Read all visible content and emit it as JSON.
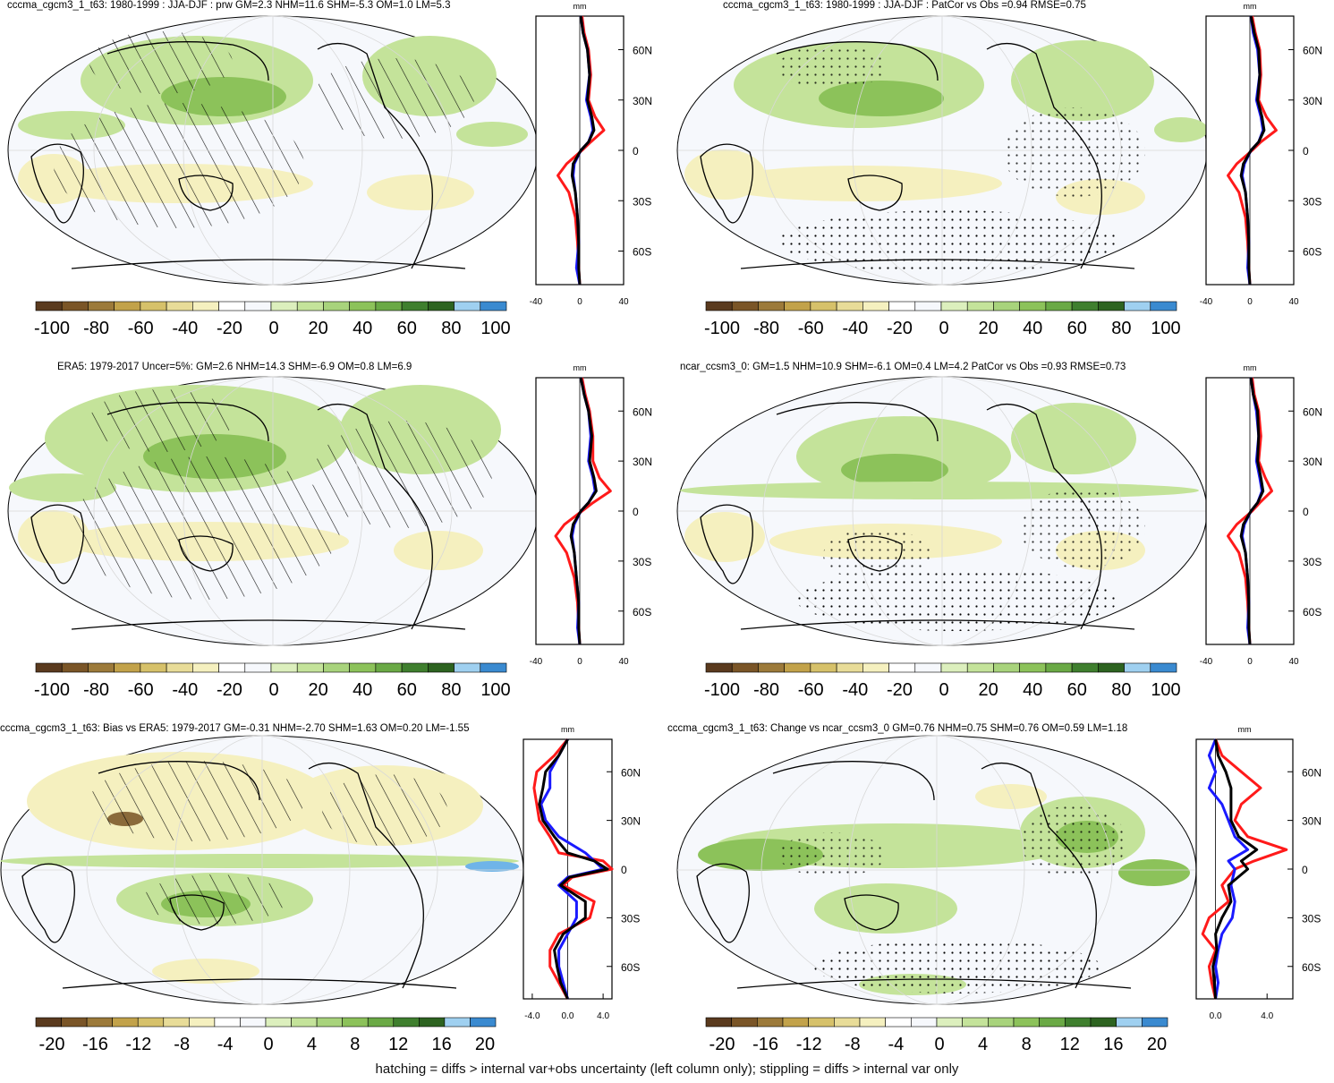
{
  "footer_note": "hatching = diffs > internal var+obs uncertainty (left column only); stippling = diffs > internal var only",
  "colors": {
    "brown": "#5a3a1e",
    "tan": "#d6c16a",
    "pale_yellow": "#f5f0bf",
    "white_band": "#f6f8fc",
    "light_green": "#c4e39a",
    "mid_green": "#8cc25a",
    "dark_green": "#3f7f2e",
    "blue": "#6fb4e8",
    "line_red": "#ff1a1a",
    "line_blue": "#1a1aff",
    "line_black": "#000000"
  },
  "chart_data": [
    {
      "type": "heatmap",
      "title": "cccma_cgcm3_1_t63: 1980-1999 : JJA-DJF : prw GM=2.3 NHM=11.6 SHM=-5.3 OM=1.0 LM=5.3",
      "colorbar": {
        "tick_labels": [
          "-100",
          "-80",
          "-60",
          "-40",
          "-20",
          "0",
          "20",
          "40",
          "60",
          "80",
          "100"
        ]
      },
      "profile": {
        "type": "line",
        "xlabel": "mm",
        "xlim": [
          -40,
          40
        ],
        "x_ticks": [
          "-40",
          "0",
          "40"
        ],
        "y_ticks": [
          "60N",
          "30N",
          "0",
          "30S",
          "60S"
        ],
        "series": [
          {
            "color": "red",
            "lat": [
              80,
              70,
              60,
              45,
              30,
              20,
              12,
              5,
              0,
              -8,
              -15,
              -25,
              -40,
              -55,
              -70,
              -80
            ],
            "values": [
              2,
              4,
              8,
              10,
              8,
              14,
              22,
              10,
              2,
              -12,
              -20,
              -10,
              -4,
              -2,
              -1,
              0
            ]
          },
          {
            "color": "blue",
            "lat": [
              80,
              70,
              60,
              45,
              30,
              20,
              12,
              5,
              0,
              -8,
              -15,
              -25,
              -40,
              -55,
              -70,
              -80
            ],
            "values": [
              1,
              3,
              7,
              9,
              6,
              10,
              12,
              8,
              1,
              -5,
              -6,
              -4,
              -2,
              -1,
              -3,
              0
            ]
          },
          {
            "color": "black",
            "lat": [
              80,
              70,
              60,
              45,
              30,
              20,
              12,
              5,
              0,
              -8,
              -15,
              -25,
              -40,
              -55,
              -70,
              -80
            ],
            "values": [
              1,
              3,
              7,
              9,
              7,
              11,
              13,
              8,
              1,
              -6,
              -7,
              -4,
              -2,
              -1,
              -1,
              0
            ]
          }
        ]
      }
    },
    {
      "type": "heatmap",
      "title": "cccma_cgcm3_1_t63: 1980-1999 : JJA-DJF : PatCor vs Obs =0.94 RMSE=0.75",
      "colorbar": {
        "tick_labels": [
          "-100",
          "-80",
          "-60",
          "-40",
          "-20",
          "0",
          "20",
          "40",
          "60",
          "80",
          "100"
        ]
      },
      "profile": {
        "type": "line",
        "xlabel": "mm",
        "xlim": [
          -40,
          40
        ],
        "x_ticks": [
          "-40",
          "0",
          "40"
        ],
        "y_ticks": [
          "60N",
          "30N",
          "0",
          "30S",
          "60S"
        ],
        "series": [
          {
            "color": "red",
            "lat": [
              80,
              70,
              60,
              45,
              30,
              20,
              12,
              5,
              0,
              -8,
              -15,
              -25,
              -40,
              -55,
              -70,
              -80
            ],
            "values": [
              2,
              5,
              9,
              10,
              8,
              15,
              24,
              10,
              2,
              -12,
              -20,
              -10,
              -4,
              -2,
              -1,
              0
            ]
          },
          {
            "color": "blue",
            "lat": [
              80,
              70,
              60,
              45,
              30,
              20,
              12,
              5,
              0,
              -8,
              -15,
              -25,
              -40,
              -55,
              -70,
              -80
            ],
            "values": [
              1,
              3,
              7,
              9,
              6,
              10,
              12,
              8,
              1,
              -5,
              -7,
              -4,
              -2,
              -1,
              -2,
              0
            ]
          },
          {
            "color": "black",
            "lat": [
              80,
              70,
              60,
              45,
              30,
              20,
              12,
              5,
              0,
              -8,
              -15,
              -25,
              -40,
              -55,
              -70,
              -80
            ],
            "values": [
              1,
              4,
              8,
              9,
              7,
              11,
              13,
              8,
              1,
              -6,
              -8,
              -4,
              -2,
              -1,
              -1,
              0
            ]
          }
        ]
      }
    },
    {
      "type": "heatmap",
      "title": "ERA5: 1979-2017 Uncer=5%: GM=2.6 NHM=14.3 SHM=-6.9 OM=0.8 LM=6.9",
      "colorbar": {
        "tick_labels": [
          "-100",
          "-80",
          "-60",
          "-40",
          "-20",
          "0",
          "20",
          "40",
          "60",
          "80",
          "100"
        ]
      },
      "profile": {
        "type": "line",
        "xlabel": "mm",
        "xlim": [
          -40,
          40
        ],
        "x_ticks": [
          "-40",
          "0",
          "40"
        ],
        "y_ticks": [
          "60N",
          "30N",
          "0",
          "30S",
          "60S"
        ],
        "series": [
          {
            "color": "red",
            "lat": [
              80,
              70,
              60,
              45,
              30,
              20,
              12,
              5,
              0,
              -8,
              -15,
              -25,
              -40,
              -55,
              -70,
              -80
            ],
            "values": [
              2,
              5,
              9,
              12,
              12,
              18,
              28,
              12,
              2,
              -14,
              -22,
              -12,
              -5,
              -2,
              -1,
              0
            ]
          },
          {
            "color": "blue",
            "lat": [
              80,
              70,
              60,
              45,
              30,
              20,
              12,
              5,
              0,
              -8,
              -15,
              -25,
              -40,
              -55,
              -70,
              -80
            ],
            "values": [
              1,
              4,
              8,
              10,
              8,
              12,
              14,
              8,
              1,
              -5,
              -7,
              -5,
              -3,
              -1,
              -2,
              0
            ]
          },
          {
            "color": "black",
            "lat": [
              80,
              70,
              60,
              45,
              30,
              20,
              12,
              5,
              0,
              -8,
              -15,
              -25,
              -40,
              -55,
              -70,
              -80
            ],
            "values": [
              1,
              4,
              8,
              11,
              9,
              13,
              15,
              8,
              1,
              -6,
              -8,
              -5,
              -3,
              -1,
              -1,
              0
            ]
          }
        ]
      }
    },
    {
      "type": "heatmap",
      "title": "ncar_ccsm3_0: GM=1.5 NHM=10.9 SHM=-6.1 OM=0.4 LM=4.2 PatCor vs Obs =0.93 RMSE=0.73",
      "colorbar": {
        "tick_labels": [
          "-100",
          "-80",
          "-60",
          "-40",
          "-20",
          "0",
          "20",
          "40",
          "60",
          "80",
          "100"
        ]
      },
      "profile": {
        "type": "line",
        "xlabel": "mm",
        "xlim": [
          -40,
          40
        ],
        "x_ticks": [
          "-40",
          "0",
          "40"
        ],
        "y_ticks": [
          "60N",
          "30N",
          "0",
          "30S",
          "60S"
        ],
        "series": [
          {
            "color": "red",
            "lat": [
              80,
              70,
              60,
              45,
              30,
              20,
              12,
              5,
              0,
              -8,
              -15,
              -25,
              -40,
              -55,
              -70,
              -80
            ],
            "values": [
              2,
              4,
              8,
              10,
              8,
              14,
              20,
              9,
              2,
              -12,
              -20,
              -10,
              -4,
              -2,
              -1,
              0
            ]
          },
          {
            "color": "blue",
            "lat": [
              80,
              70,
              60,
              45,
              30,
              20,
              12,
              5,
              0,
              -8,
              -15,
              -25,
              -40,
              -55,
              -70,
              -80
            ],
            "values": [
              1,
              3,
              6,
              8,
              6,
              9,
              11,
              7,
              1,
              -5,
              -7,
              -4,
              -2,
              -1,
              -2,
              0
            ]
          },
          {
            "color": "black",
            "lat": [
              80,
              70,
              60,
              45,
              30,
              20,
              12,
              5,
              0,
              -8,
              -15,
              -25,
              -40,
              -55,
              -70,
              -80
            ],
            "values": [
              1,
              3,
              7,
              8,
              7,
              10,
              12,
              7,
              1,
              -6,
              -8,
              -4,
              -2,
              -1,
              -1,
              0
            ]
          }
        ]
      }
    },
    {
      "type": "heatmap",
      "title": "cccma_cgcm3_1_t63: Bias vs ERA5: 1979-2017 GM=-0.31 NHM=-2.70 SHM=1.63 OM=0.20 LM=-1.55",
      "colorbar": {
        "tick_labels": [
          "-20",
          "-16",
          "-12",
          "-8",
          "-4",
          "0",
          "4",
          "8",
          "12",
          "16",
          "20"
        ]
      },
      "profile": {
        "type": "line",
        "xlabel": "mm",
        "xlim": [
          -5,
          5
        ],
        "x_ticks": [
          "-4.0",
          "0.0",
          "4.0"
        ],
        "y_ticks": [
          "60N",
          "30N",
          "0",
          "30S",
          "60S"
        ],
        "series": [
          {
            "color": "red",
            "lat": [
              80,
              70,
              60,
              50,
              40,
              30,
              20,
              10,
              5,
              0,
              -5,
              -10,
              -20,
              -30,
              -40,
              -50,
              -60,
              -70,
              -80
            ],
            "values": [
              0,
              -1.5,
              -3.5,
              -3.8,
              -3.5,
              -3.2,
              -2,
              -1,
              4,
              5,
              0.5,
              -0.5,
              3,
              2.5,
              -1,
              -2,
              -2,
              -1,
              0
            ]
          },
          {
            "color": "blue",
            "lat": [
              80,
              70,
              60,
              50,
              40,
              30,
              20,
              10,
              5,
              0,
              -5,
              -10,
              -20,
              -30,
              -40,
              -50,
              -60,
              -70,
              -80
            ],
            "values": [
              0,
              -1,
              -2,
              -2,
              -3,
              -2.5,
              -1,
              2,
              3,
              4,
              0,
              -1,
              1,
              1,
              0,
              -1,
              -1,
              -0.5,
              0
            ]
          },
          {
            "color": "black",
            "lat": [
              80,
              70,
              60,
              50,
              40,
              30,
              20,
              10,
              5,
              0,
              -5,
              -10,
              -20,
              -30,
              -40,
              -50,
              -60,
              -70,
              -80
            ],
            "values": [
              0,
              -1,
              -2.5,
              -2.8,
              -3.2,
              -2.8,
              -1.5,
              0,
              3,
              4.5,
              0.2,
              -0.8,
              2,
              2,
              -0.5,
              -1.5,
              -1.2,
              -0.8,
              0
            ]
          }
        ]
      }
    },
    {
      "type": "heatmap",
      "title": "cccma_cgcm3_1_t63: Change vs ncar_ccsm3_0 GM=0.76 NHM=0.75 SHM=0.76 OM=0.59 LM=1.18",
      "colorbar": {
        "tick_labels": [
          "-20",
          "-16",
          "-12",
          "-8",
          "-4",
          "0",
          "4",
          "8",
          "12",
          "16",
          "20"
        ]
      },
      "profile": {
        "type": "line",
        "xlabel": "mm",
        "xlim": [
          -1.5,
          6
        ],
        "x_ticks": [
          "0.0",
          "4.0"
        ],
        "y_ticks": [
          "60N",
          "30N",
          "0",
          "30S",
          "60S"
        ],
        "series": [
          {
            "color": "red",
            "lat": [
              80,
              70,
              60,
              50,
              40,
              30,
              20,
              12,
              5,
              0,
              -10,
              -20,
              -30,
              -40,
              -50,
              -60,
              -70,
              -80
            ],
            "values": [
              0,
              0.5,
              2,
              3.5,
              2,
              1.5,
              2.5,
              5.5,
              3,
              1.5,
              0.5,
              1,
              -0.5,
              -1,
              0,
              -0.5,
              -0.3,
              0
            ]
          },
          {
            "color": "blue",
            "lat": [
              80,
              70,
              60,
              50,
              40,
              30,
              20,
              12,
              5,
              0,
              -10,
              -20,
              -30,
              -40,
              -50,
              -60,
              -70,
              -80
            ],
            "values": [
              0,
              -0.5,
              0,
              -0.5,
              0.5,
              1,
              1.5,
              2.5,
              1,
              1.5,
              1.2,
              1.5,
              1.3,
              0.5,
              0.2,
              0,
              0.2,
              0
            ]
          },
          {
            "color": "black",
            "lat": [
              80,
              70,
              60,
              50,
              40,
              30,
              20,
              12,
              5,
              0,
              -10,
              -20,
              -30,
              -40,
              -50,
              -60,
              -70,
              -80
            ],
            "values": [
              0,
              0.2,
              0.8,
              1.2,
              1.2,
              1.2,
              1.8,
              3.2,
              2,
              2.5,
              1,
              1.2,
              0.5,
              0,
              0.1,
              -0.2,
              -0.1,
              0
            ]
          }
        ]
      }
    }
  ]
}
